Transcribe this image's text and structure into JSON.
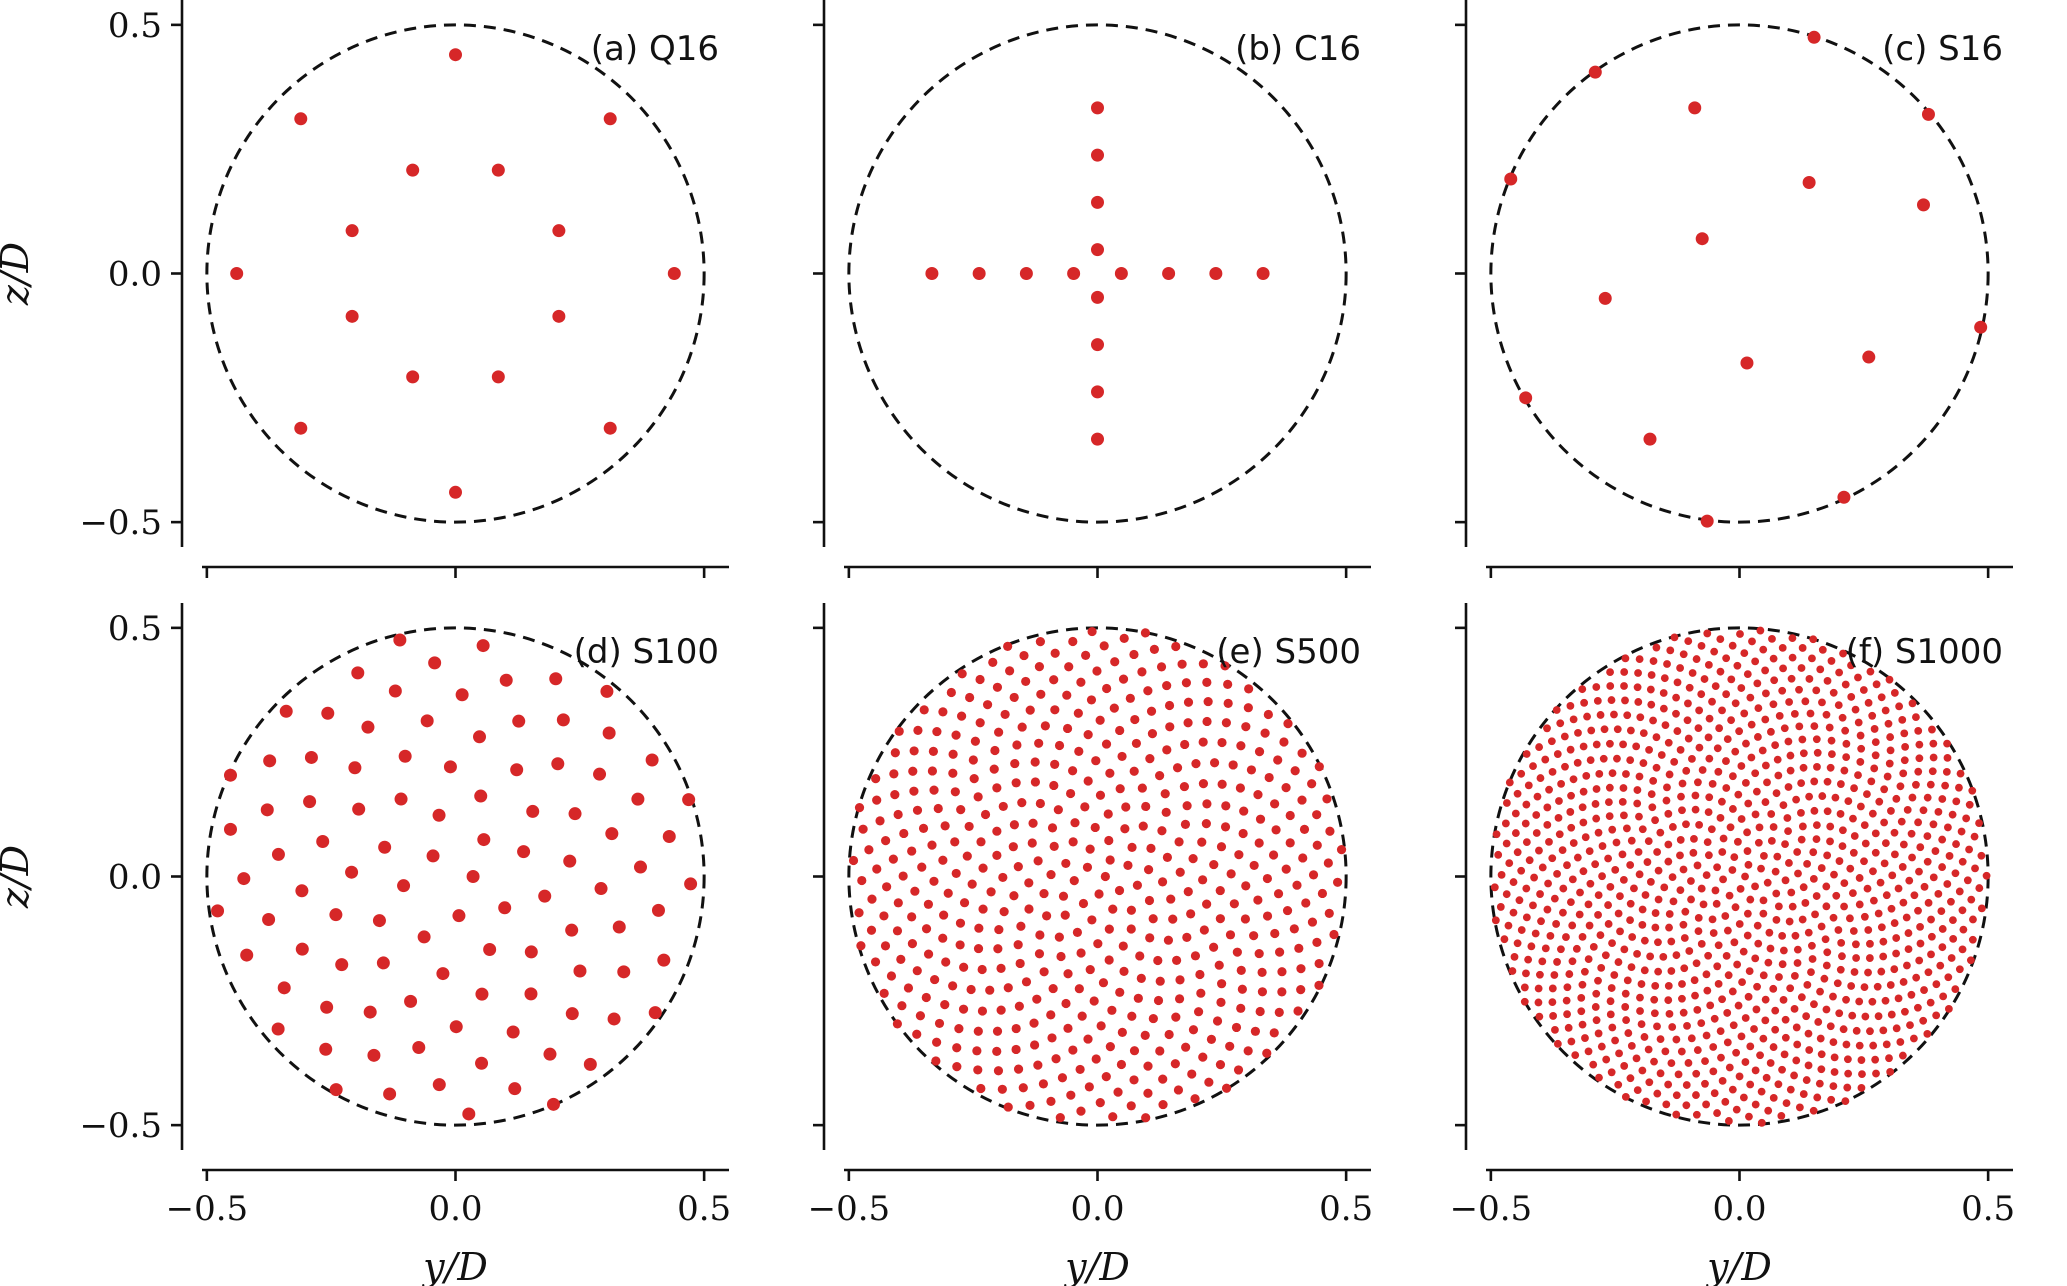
{
  "chart_data": [
    {
      "type": "scatter",
      "panel": "a",
      "label": "(a) Q16",
      "xlabel": "",
      "ylabel": "z/D",
      "xlim": [
        -0.55,
        0.55
      ],
      "ylim": [
        -0.55,
        0.55
      ],
      "xticks": [
        "",
        "",
        ""
      ],
      "yticks": [
        "0.5",
        "0.0",
        "−0.5"
      ],
      "boundary": {
        "center": [
          0,
          0
        ],
        "radius": 0.5
      },
      "marker_color": "#d62728",
      "points_rings": [
        {
          "n": 8,
          "radius": 0.44,
          "phase_deg": 0
        },
        {
          "n": 8,
          "radius": 0.225,
          "phase_deg": 22.5
        }
      ]
    },
    {
      "type": "scatter",
      "panel": "b",
      "label": "(b) C16",
      "xlabel": "",
      "ylabel": "",
      "xlim": [
        -0.55,
        0.55
      ],
      "ylim": [
        -0.55,
        0.55
      ],
      "xticks": [
        "",
        "",
        ""
      ],
      "yticks": [
        "",
        "",
        ""
      ],
      "boundary": {
        "center": [
          0,
          0
        ],
        "radius": 0.5
      },
      "marker_color": "#d62728",
      "points": [
        [
          -0.333,
          0
        ],
        [
          -0.238,
          0
        ],
        [
          -0.143,
          0
        ],
        [
          -0.048,
          0
        ],
        [
          0.048,
          0
        ],
        [
          0.143,
          0
        ],
        [
          0.238,
          0
        ],
        [
          0.333,
          0
        ],
        [
          0,
          0.333
        ],
        [
          0,
          0.238
        ],
        [
          0,
          0.143
        ],
        [
          0,
          0.048
        ],
        [
          0,
          -0.048
        ],
        [
          0,
          -0.143
        ],
        [
          0,
          -0.238
        ],
        [
          0,
          -0.333
        ]
      ]
    },
    {
      "type": "scatter",
      "panel": "c",
      "label": "(c) S16",
      "xlabel": "",
      "ylabel": "",
      "xlim": [
        -0.55,
        0.55
      ],
      "ylim": [
        -0.55,
        0.55
      ],
      "xticks": [
        "",
        "",
        ""
      ],
      "yticks": [
        "",
        "",
        ""
      ],
      "boundary": {
        "center": [
          0,
          0
        ],
        "radius": 0.5
      },
      "marker_color": "#d62728",
      "points": [
        [
          0.15,
          0.475
        ],
        [
          -0.29,
          0.405
        ],
        [
          -0.09,
          0.333
        ],
        [
          0.38,
          0.32
        ],
        [
          0.14,
          0.183
        ],
        [
          -0.46,
          0.19
        ],
        [
          0.37,
          0.138
        ],
        [
          -0.075,
          0.07
        ],
        [
          -0.27,
          -0.05
        ],
        [
          0.485,
          -0.108
        ],
        [
          0.015,
          -0.18
        ],
        [
          0.26,
          -0.168
        ],
        [
          -0.43,
          -0.25
        ],
        [
          -0.18,
          -0.333
        ],
        [
          0.21,
          -0.45
        ],
        [
          -0.065,
          -0.498
        ]
      ]
    },
    {
      "type": "scatter",
      "panel": "d",
      "label": "(d) S100",
      "xlabel": "y/D",
      "ylabel": "z/D",
      "xlim": [
        -0.55,
        0.55
      ],
      "ylim": [
        -0.55,
        0.55
      ],
      "xticks": [
        "−0.5",
        "0.0",
        "0.5"
      ],
      "yticks": [
        "0.5",
        "0.0",
        "−0.5"
      ],
      "boundary": {
        "center": [
          0,
          0
        ],
        "radius": 0.5
      },
      "marker_color": "#d62728",
      "points_spiral": {
        "n": 100,
        "radius": 0.5
      }
    },
    {
      "type": "scatter",
      "panel": "e",
      "label": "(e) S500",
      "xlabel": "y/D",
      "ylabel": "",
      "xlim": [
        -0.55,
        0.55
      ],
      "ylim": [
        -0.55,
        0.55
      ],
      "xticks": [
        "−0.5",
        "0.0",
        "0.5"
      ],
      "yticks": [
        "",
        "",
        ""
      ],
      "boundary": {
        "center": [
          0,
          0
        ],
        "radius": 0.5
      },
      "marker_color": "#d62728",
      "points_spiral": {
        "n": 500,
        "radius": 0.5
      }
    },
    {
      "type": "scatter",
      "panel": "f",
      "label": "(f) S1000",
      "xlabel": "y/D",
      "ylabel": "",
      "xlim": [
        -0.55,
        0.55
      ],
      "ylim": [
        -0.55,
        0.55
      ],
      "xticks": [
        "−0.5",
        "0.0",
        "0.5"
      ],
      "yticks": [
        "",
        "",
        ""
      ],
      "boundary": {
        "center": [
          0,
          0
        ],
        "radius": 0.5
      },
      "marker_color": "#d62728",
      "points_spiral": {
        "n": 1000,
        "radius": 0.5
      }
    }
  ]
}
